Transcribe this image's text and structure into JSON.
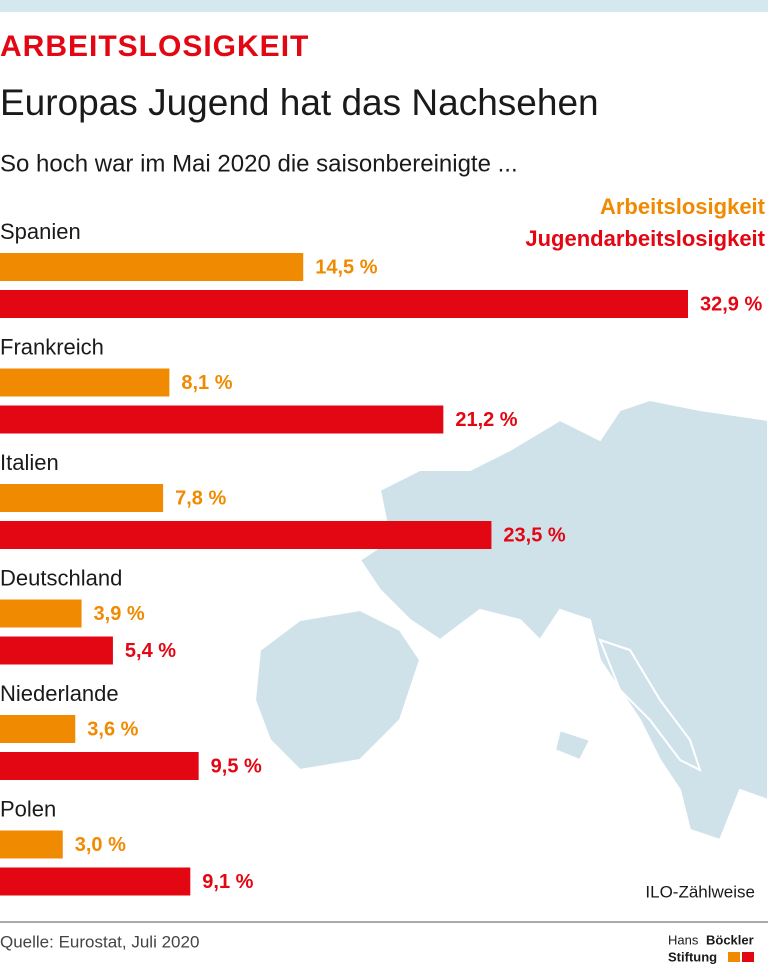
{
  "chart_data": {
    "type": "hbar-grouped",
    "kicker": "ARBEITSLOSIGKEIT",
    "title": "Europas Jugend hat das Nachsehen",
    "subtitle": "So hoch war im Mai 2020 die saisonbereinigte ...",
    "categories": [
      "Spanien",
      "Frankreich",
      "Italien",
      "Deutschland",
      "Niederlande",
      "Polen"
    ],
    "series": [
      {
        "name": "Arbeitslosigkeit",
        "color": "#f08a00",
        "values": [
          14.5,
          8.1,
          7.8,
          3.9,
          3.6,
          3.0
        ],
        "value_labels": [
          "14,5 %",
          "8,1 %",
          "7,8 %",
          "3,9 %",
          "3,6 %",
          "3,0 %"
        ]
      },
      {
        "name": "Jugendarbeitslosigkeit",
        "color": "#e30613",
        "values": [
          32.9,
          21.2,
          23.5,
          5.4,
          9.5,
          9.1
        ],
        "value_labels": [
          "32,9 %",
          "21,2 %",
          "23,5 %",
          "5,4 %",
          "9,5 %",
          "9,1 %"
        ]
      }
    ],
    "note": "ILO-Zählweise",
    "source": "Quelle: Eurostat, Juli 2020",
    "brand": [
      "Hans",
      "Böckler",
      "Stiftung"
    ]
  }
}
